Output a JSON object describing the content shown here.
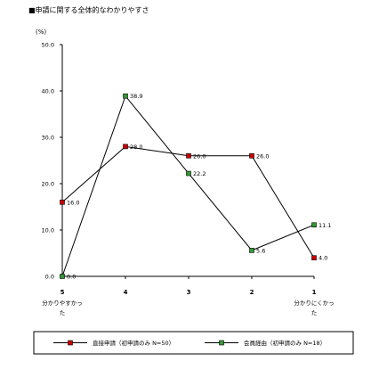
{
  "chart_data": {
    "type": "line",
    "title": "■申請に関する全体的なわかりやすさ",
    "ylabel": "(%)",
    "xlabel": "",
    "ylim": [
      0,
      50
    ],
    "yticks": [
      "0.0",
      "10.0",
      "20.0",
      "30.0",
      "40.0",
      "50.0"
    ],
    "x": [
      {
        "tick": "5",
        "label_lines": [
          "分かりやすかっ",
          "た"
        ]
      },
      {
        "tick": "4",
        "label_lines": []
      },
      {
        "tick": "3",
        "label_lines": []
      },
      {
        "tick": "2",
        "label_lines": []
      },
      {
        "tick": "1",
        "label_lines": [
          "分かりにくかっ",
          "た"
        ]
      }
    ],
    "series": [
      {
        "name": "直接申請（初申請のみ N=50）",
        "color": "#cc0000",
        "marker": "square",
        "values": [
          16.0,
          28.0,
          26.0,
          26.0,
          4.0
        ],
        "labels": [
          "16.0",
          "28.0",
          "26.0",
          "26.0",
          "4.0"
        ]
      },
      {
        "name": "会員経由（初申請のみ N=18）",
        "color": "#339933",
        "marker": "square",
        "values": [
          0.0,
          38.9,
          22.2,
          5.6,
          11.1
        ],
        "labels": [
          "0.0",
          "38.9",
          "22.2",
          "5.6",
          "11.1"
        ]
      }
    ],
    "grid": false,
    "legend_position": "bottom"
  }
}
